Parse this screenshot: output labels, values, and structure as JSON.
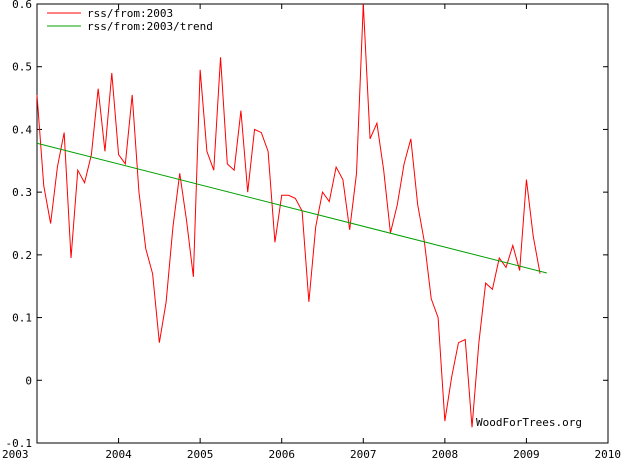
{
  "chart_data": {
    "type": "line",
    "title": "",
    "xlabel": "",
    "ylabel": "",
    "xlim": [
      2003,
      2010
    ],
    "ylim": [
      -0.1,
      0.6
    ],
    "x_ticks": [
      "2003",
      "2004",
      "2005",
      "2006",
      "2007",
      "2008",
      "2009",
      "2010"
    ],
    "y_ticks": [
      "-0.1",
      "0",
      "0.1",
      "0.2",
      "0.3",
      "0.4",
      "0.5",
      "0.6"
    ],
    "grid": false,
    "legend_position": "top-left",
    "credit": "WoodForTrees.org",
    "series": [
      {
        "name": "rss/from:2003",
        "color": "#ff0000",
        "x": [
          2003.0,
          2003.083,
          2003.167,
          2003.25,
          2003.333,
          2003.417,
          2003.5,
          2003.583,
          2003.667,
          2003.75,
          2003.833,
          2003.917,
          2004.0,
          2004.083,
          2004.167,
          2004.25,
          2004.333,
          2004.417,
          2004.5,
          2004.583,
          2004.667,
          2004.75,
          2004.833,
          2004.917,
          2005.0,
          2005.083,
          2005.167,
          2005.25,
          2005.333,
          2005.417,
          2005.5,
          2005.583,
          2005.667,
          2005.75,
          2005.833,
          2005.917,
          2006.0,
          2006.083,
          2006.167,
          2006.25,
          2006.333,
          2006.417,
          2006.5,
          2006.583,
          2006.667,
          2006.75,
          2006.833,
          2006.917,
          2007.0,
          2007.083,
          2007.167,
          2007.25,
          2007.333,
          2007.417,
          2007.5,
          2007.583,
          2007.667,
          2007.75,
          2007.833,
          2007.917,
          2008.0,
          2008.083,
          2008.167,
          2008.25,
          2008.333,
          2008.417,
          2008.5,
          2008.583,
          2008.667,
          2008.75,
          2008.833,
          2008.917,
          2009.0,
          2009.083,
          2009.167
        ],
        "y": [
          0.455,
          0.31,
          0.25,
          0.34,
          0.395,
          0.195,
          0.335,
          0.315,
          0.36,
          0.465,
          0.365,
          0.49,
          0.36,
          0.345,
          0.455,
          0.3,
          0.21,
          0.17,
          0.06,
          0.125,
          0.245,
          0.33,
          0.255,
          0.165,
          0.495,
          0.365,
          0.335,
          0.515,
          0.345,
          0.335,
          0.43,
          0.3,
          0.4,
          0.395,
          0.365,
          0.22,
          0.295,
          0.295,
          0.29,
          0.27,
          0.125,
          0.245,
          0.3,
          0.285,
          0.34,
          0.32,
          0.24,
          0.33,
          0.6,
          0.385,
          0.41,
          0.335,
          0.235,
          0.28,
          0.345,
          0.385,
          0.28,
          0.22,
          0.13,
          0.1,
          -0.065,
          0.005,
          0.06,
          0.065,
          -0.075,
          0.06,
          0.155,
          0.145,
          0.195,
          0.18,
          0.215,
          0.175,
          0.32,
          0.23,
          0.17
        ]
      },
      {
        "name": "rss/from:2003/trend",
        "color": "#00a000",
        "x": [
          2003.0,
          2009.25
        ],
        "y": [
          0.378,
          0.171
        ]
      }
    ]
  }
}
